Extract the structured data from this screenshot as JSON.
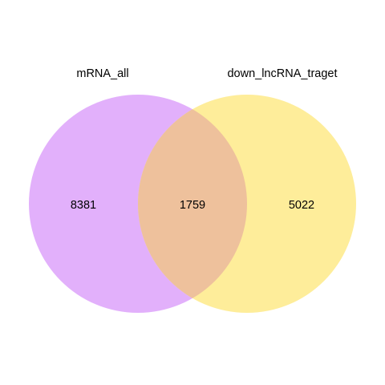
{
  "venn": {
    "sets": [
      {
        "name": "mRNA_all",
        "color": "#E2B0FB"
      },
      {
        "name": "down_lncRNA_traget",
        "color": "#FEED9A"
      }
    ],
    "intersection_color": "#EEC19C",
    "counts": {
      "left_only": "8381",
      "both": "1759",
      "right_only": "5022"
    }
  },
  "chart_data": {
    "type": "venn",
    "sets": [
      "mRNA_all",
      "down_lncRNA_traget"
    ],
    "regions": [
      {
        "sets": [
          "mRNA_all"
        ],
        "value": 8381
      },
      {
        "sets": [
          "mRNA_all",
          "down_lncRNA_traget"
        ],
        "value": 1759
      },
      {
        "sets": [
          "down_lncRNA_traget"
        ],
        "value": 5022
      }
    ]
  }
}
